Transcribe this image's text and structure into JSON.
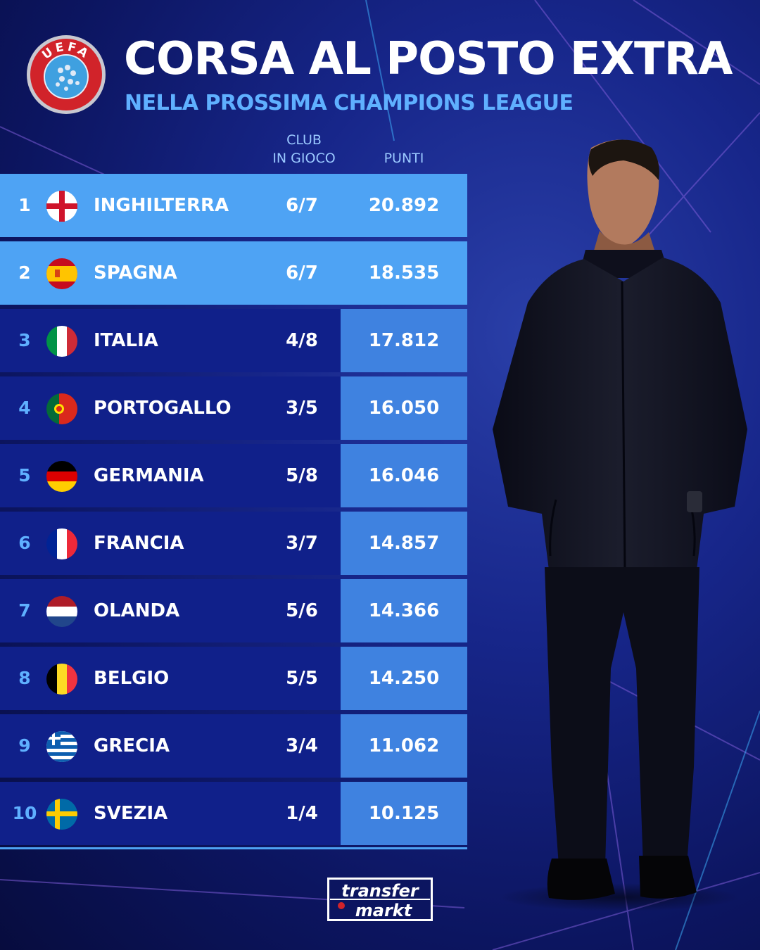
{
  "title": "CORSA AL POSTO EXTRA",
  "subtitle": "NELLA PROSSIMA CHAMPIONS LEAGUE",
  "logo_text": "UEFA",
  "columns": {
    "club_line1": "CLUB",
    "club_line2": "IN GIOCO",
    "points": "PUNTI"
  },
  "rows": [
    {
      "rank": "1",
      "country": "INGHILTERRA",
      "clubs": "6/7",
      "points": "20.892",
      "flag_icon": "england-flag-icon"
    },
    {
      "rank": "2",
      "country": "SPAGNA",
      "clubs": "6/7",
      "points": "18.535",
      "flag_icon": "spain-flag-icon"
    },
    {
      "rank": "3",
      "country": "ITALIA",
      "clubs": "4/8",
      "points": "17.812",
      "flag_icon": "italy-flag-icon"
    },
    {
      "rank": "4",
      "country": "PORTOGALLO",
      "clubs": "3/5",
      "points": "16.050",
      "flag_icon": "portugal-flag-icon"
    },
    {
      "rank": "5",
      "country": "GERMANIA",
      "clubs": "5/8",
      "points": "16.046",
      "flag_icon": "germany-flag-icon"
    },
    {
      "rank": "6",
      "country": "FRANCIA",
      "clubs": "3/7",
      "points": "14.857",
      "flag_icon": "france-flag-icon"
    },
    {
      "rank": "7",
      "country": "OLANDA",
      "clubs": "5/6",
      "points": "14.366",
      "flag_icon": "netherlands-flag-icon"
    },
    {
      "rank": "8",
      "country": "BELGIO",
      "clubs": "5/5",
      "points": "14.250",
      "flag_icon": "belgium-flag-icon"
    },
    {
      "rank": "9",
      "country": "GRECIA",
      "clubs": "3/4",
      "points": "11.062",
      "flag_icon": "greece-flag-icon"
    },
    {
      "rank": "10",
      "country": "SVEZIA",
      "clubs": "1/4",
      "points": "10.125",
      "flag_icon": "sweden-flag-icon"
    }
  ],
  "brand": {
    "line1": "transfer",
    "line2": "markt"
  },
  "colors": {
    "background": "#0c1560",
    "highlight_row": "#4ea3f4",
    "row": "#10208a",
    "points_cell": "#3f82e0",
    "accent_text": "#5fb0ff"
  }
}
